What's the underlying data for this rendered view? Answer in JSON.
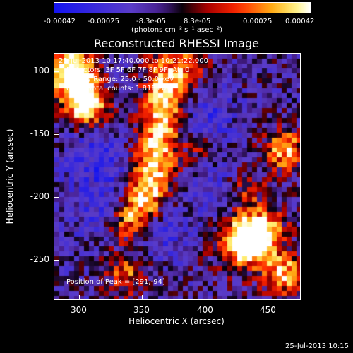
{
  "colorbar": {
    "tick_labels": [
      "-0.00042",
      "-0.00025",
      "-8.3e-05",
      "8.3e-05",
      "0.00025",
      "0.00042"
    ],
    "units": "(photons cm⁻² s⁻¹ asec⁻²)",
    "min": -0.00042,
    "max": 0.00042
  },
  "title": "Reconstructed RHESSI Image",
  "annotations": {
    "time_range": "25-Jul-2013 10:17:40.000 to 10:21:22.000",
    "detectors": "Detectors: 3F 5F 6F 7F 8F 9F, Att 0",
    "energy": "Energy Range: 25.0 - 50.0 keV",
    "clean": "Clean    Total counts: 1.81E+04",
    "peak": "Position of Peak = [291,-94]"
  },
  "axes": {
    "xlabel": "Heliocentric X (arcsec)",
    "ylabel": "Heliocentric Y (arcsec)",
    "x_ticks": [
      "300",
      "350",
      "400",
      "450"
    ],
    "y_ticks": [
      "-100",
      "-150",
      "-200",
      "-250"
    ],
    "x_range": [
      281,
      477
    ],
    "y_range": [
      -84,
      -280
    ]
  },
  "footer": {
    "timestamp": "25-Jul-2013 10:15"
  }
}
